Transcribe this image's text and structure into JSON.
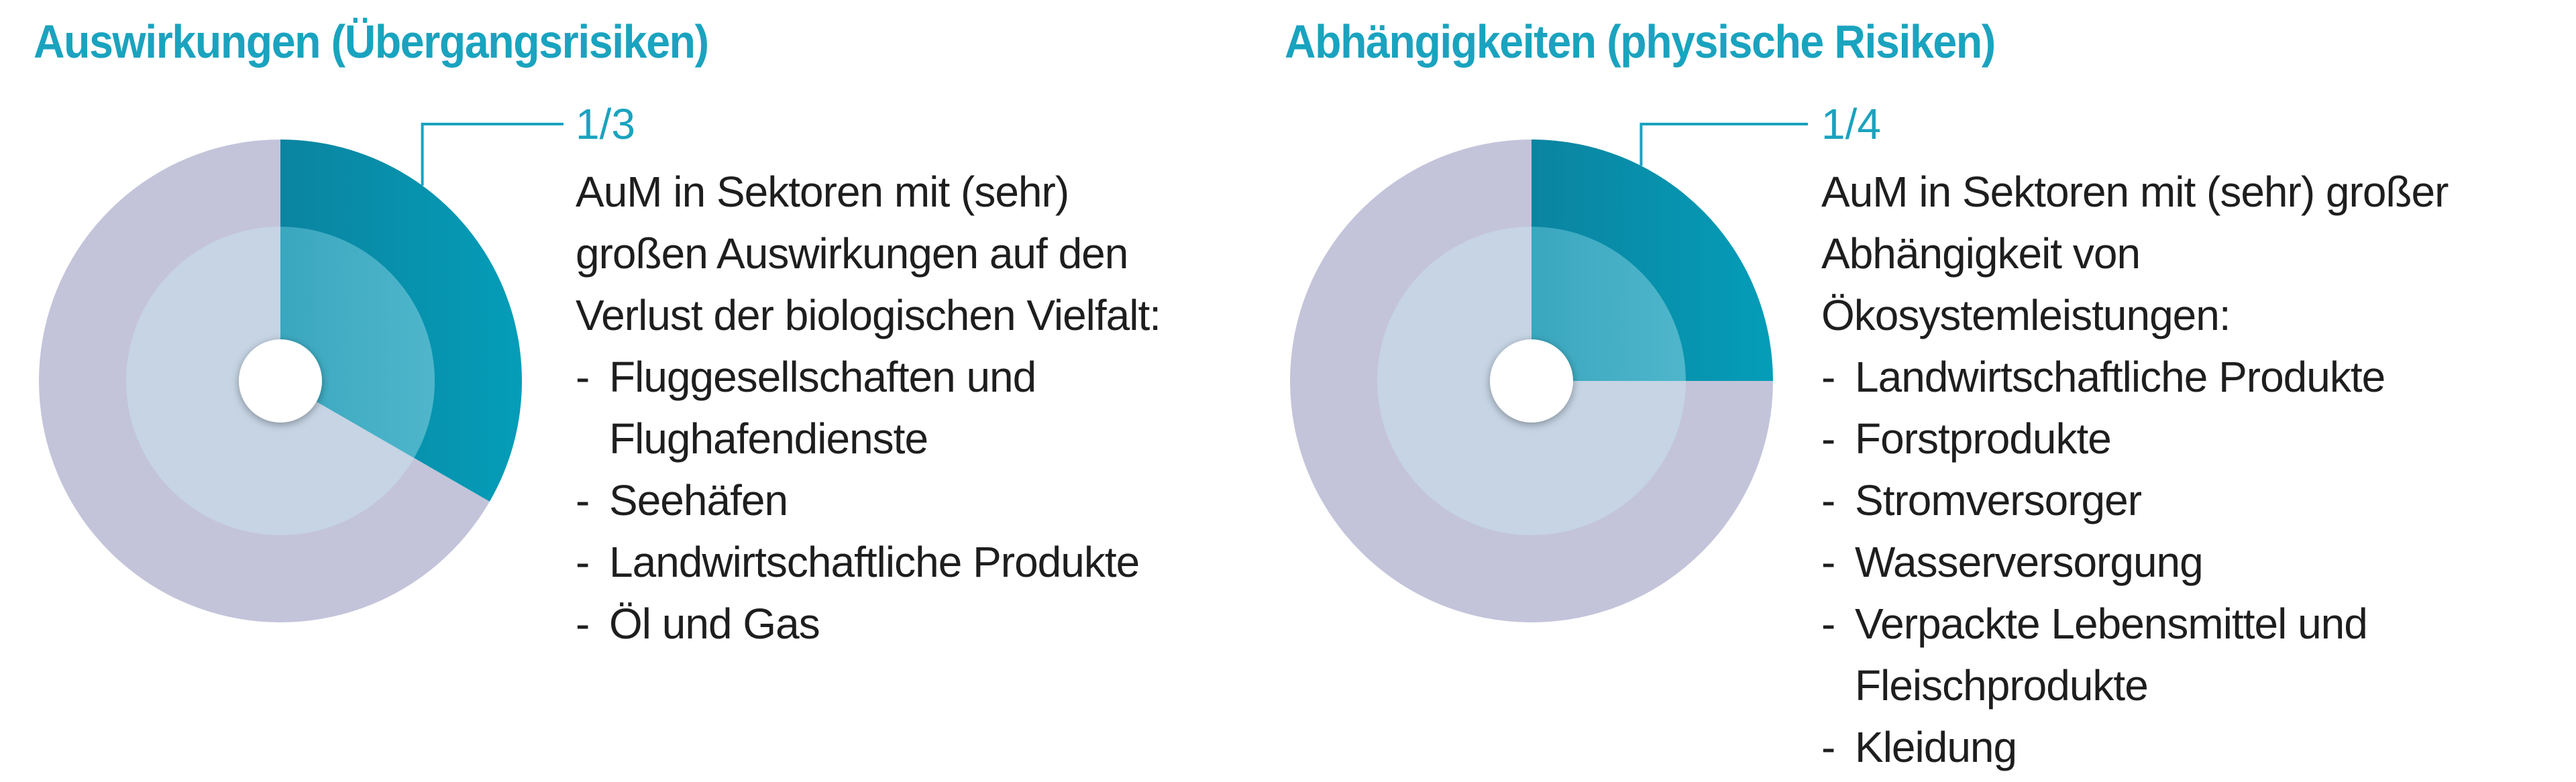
{
  "colors": {
    "accent": "#1aa3bf",
    "text": "#1e1e1e",
    "remainder_outer": "#c3c4da",
    "remainder_inner": "#c6d4e4",
    "highlight_outer": "#049db8",
    "highlight_inner": "#4fb6cb"
  },
  "chart_data": [
    {
      "type": "pie",
      "title": "Auswirkungen (Übergangsrisiken)",
      "highlight_label": "1/3",
      "slices": [
        {
          "label": "AuM in Sektoren mit (sehr) großen Auswirkungen auf den Verlust der biologischen Vielfalt",
          "value": 0.3333
        },
        {
          "label": "",
          "value": 0.6667
        }
      ],
      "description": "AuM in Sektoren mit (sehr)\ngroßen Auswirkungen auf den\nVerlust der biologischen Vielfalt:",
      "items": [
        "Fluggesellschaften und Flughafendienste",
        "Seehäfen",
        "Landwirtschaftliche Produkte",
        "Öl und Gas"
      ]
    },
    {
      "type": "pie",
      "title": "Abhängigkeiten (physische Risiken)",
      "highlight_label": "1/4",
      "slices": [
        {
          "label": "AuM in Sektoren mit (sehr) großer Abhängigkeit von Ökosystemleistungen",
          "value": 0.25
        },
        {
          "label": "",
          "value": 0.75
        }
      ],
      "description": "AuM in Sektoren mit (sehr) großer\nAbhängigkeit von\nÖkosystemleistungen:",
      "items": [
        "Landwirtschaftliche Produkte",
        "Forstprodukte",
        "Stromversorger",
        "Wasserversorgung",
        "Verpackte Lebensmittel und Fleischprodukte",
        "Kleidung"
      ]
    }
  ]
}
